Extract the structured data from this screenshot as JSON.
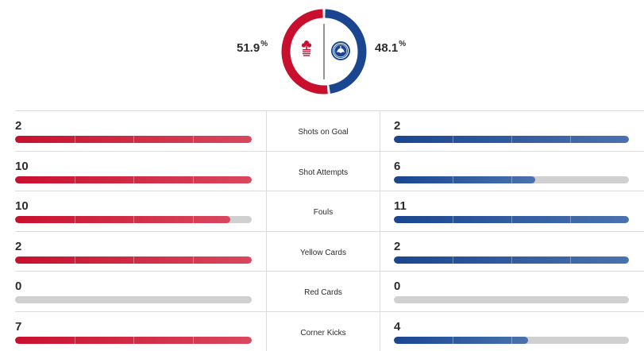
{
  "possession": {
    "home": {
      "value": "51.9",
      "unit": "%",
      "fraction": 0.519
    },
    "away": {
      "value": "48.1",
      "unit": "%",
      "fraction": 0.481
    }
  },
  "colors": {
    "home": "#c8102e",
    "away": "#1a4691",
    "empty": "#d0d0d0"
  },
  "teams": {
    "home": {
      "crest_icon": "nottingham-forest-crest-icon",
      "crest_text": "FOREST"
    },
    "away": {
      "crest_icon": "chelsea-crest-icon",
      "crest_text": "CHELSEA"
    }
  },
  "stats": [
    {
      "label": "Shots on Goal",
      "home": "2",
      "away": "2",
      "home_fill": 1.0,
      "away_fill": 1.0
    },
    {
      "label": "Shot Attempts",
      "home": "10",
      "away": "6",
      "home_fill": 1.0,
      "away_fill": 0.6
    },
    {
      "label": "Fouls",
      "home": "10",
      "away": "11",
      "home_fill": 0.909,
      "away_fill": 1.0
    },
    {
      "label": "Yellow Cards",
      "home": "2",
      "away": "2",
      "home_fill": 1.0,
      "away_fill": 1.0
    },
    {
      "label": "Red Cards",
      "home": "0",
      "away": "0",
      "home_fill": 0,
      "away_fill": 0
    },
    {
      "label": "Corner Kicks",
      "home": "7",
      "away": "4",
      "home_fill": 1.0,
      "away_fill": 0.571
    }
  ]
}
